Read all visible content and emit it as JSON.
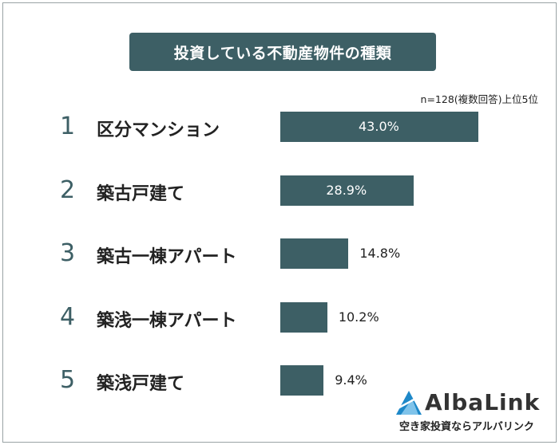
{
  "title": "投資している不動産物件の種類",
  "note": "n=128(複数回答)上位5位",
  "logo": {
    "name": "AlbaLink",
    "tagline": "空き家投資ならアルバリンク",
    "icon": "albalink-logo-icon"
  },
  "colors": {
    "bar": "#3d5f65",
    "title_bg": "#3d5f65",
    "rank": "#3d5f65"
  },
  "chart_data": {
    "type": "bar",
    "orientation": "horizontal",
    "title": "投資している不動産物件の種類",
    "subtitle": "n=128(複数回答)上位5位",
    "ranks": [
      "1",
      "2",
      "3",
      "4",
      "5"
    ],
    "categories": [
      "区分マンション",
      "築古戸建て",
      "築古一棟アパート",
      "築浅一棟アパート",
      "築浅戸建て"
    ],
    "values": [
      43.0,
      28.9,
      14.8,
      10.2,
      9.4
    ],
    "value_labels": [
      "43.0%",
      "28.9%",
      "14.8%",
      "10.2%",
      "9.4%"
    ],
    "unit": "%",
    "xlim": [
      0,
      100
    ],
    "grid": false,
    "legend": "none"
  }
}
